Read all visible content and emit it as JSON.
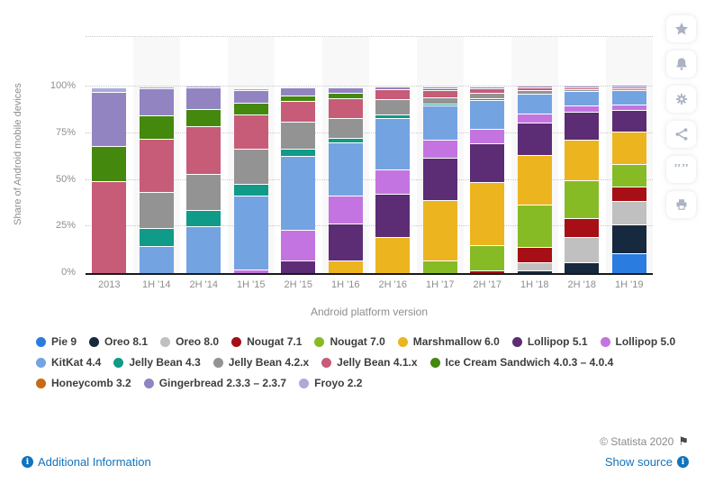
{
  "page": {
    "copyright": "© Statista 2020",
    "flag_glyph": "⚑",
    "info_glyph": "i",
    "additional_info_label": "Additional Information",
    "show_source_label": "Show source",
    "link_color": "#1273be"
  },
  "toolbar": {
    "icons": [
      "star-icon",
      "bell-icon",
      "gear-icon",
      "share-icon",
      "cite-quote-icon",
      "print-icon"
    ],
    "icon_color": "#a9b3c1",
    "cite_glyph": "””"
  },
  "chart_data": {
    "type": "bar",
    "stacked": true,
    "stack_total": 100,
    "title": "",
    "xlabel": "Android platform version",
    "ylabel": "Share of Android mobile devices",
    "ylim": [
      0,
      100
    ],
    "yticks": [
      "0%",
      "25%",
      "50%",
      "75%",
      "100%"
    ],
    "ytick_values": [
      0,
      25,
      50,
      75,
      100
    ],
    "grid": "dotted horizontal",
    "legend_position": "bottom",
    "categories": [
      "2013",
      "1H '14",
      "2H '14",
      "1H '15",
      "2H '15",
      "1H '16",
      "2H '16",
      "1H '17",
      "2H '17",
      "1H '18",
      "2H '18",
      "1H '19"
    ],
    "series_note": "stacking order bottom-to-top; values are percent per half-year column",
    "series": [
      {
        "name": "Pie 9",
        "color": "#2a7ce0",
        "values": [
          0,
          0,
          0,
          0,
          0,
          0,
          0,
          0,
          0,
          0,
          0,
          10.5
        ]
      },
      {
        "name": "Oreo 8.1",
        "color": "#17293e",
        "values": [
          0,
          0,
          0,
          0,
          0,
          0,
          0,
          0,
          0,
          1.5,
          6,
          15.5
        ]
      },
      {
        "name": "Oreo 8.0",
        "color": "#c0c0c0",
        "values": [
          0,
          0,
          0,
          0,
          0,
          0,
          0,
          0,
          0,
          4.5,
          13.5,
          12.5
        ]
      },
      {
        "name": "Nougat 7.1",
        "color": "#a50f15",
        "values": [
          0,
          0,
          0,
          0,
          0,
          0,
          0,
          0,
          1.5,
          8,
          10,
          7.5
        ]
      },
      {
        "name": "Nougat 7.0",
        "color": "#87bb26",
        "values": [
          0,
          0,
          0,
          0,
          0,
          0,
          0,
          7,
          13.5,
          22.5,
          20.5,
          12
        ]
      },
      {
        "name": "Marshmallow 6.0",
        "color": "#ecb41f",
        "values": [
          0,
          0,
          0,
          0,
          0,
          7,
          19.5,
          32.5,
          34,
          26.5,
          21.5,
          17.5
        ]
      },
      {
        "name": "Lollipop 5.1",
        "color": "#5c2c75",
        "values": [
          0,
          0,
          0,
          0,
          7,
          20,
          23,
          22.5,
          21,
          17.5,
          15,
          11.5
        ]
      },
      {
        "name": "Lollipop 5.0",
        "color": "#c374e0",
        "values": [
          0,
          0,
          0,
          2,
          16.5,
          15,
          13,
          9.5,
          7.5,
          5,
          3.5,
          3
        ]
      },
      {
        "name": "KitKat 4.4",
        "color": "#74a3e2",
        "values": [
          0,
          14.5,
          25,
          39.5,
          39.5,
          28.5,
          27.5,
          18.5,
          15.5,
          10.5,
          7.5,
          7.5
        ]
      },
      {
        "name": "Jelly Bean 4.3",
        "color": "#109a88",
        "values": [
          0,
          9.5,
          8.5,
          6.5,
          4,
          2.5,
          2,
          1,
          0.7,
          0,
          0,
          0
        ]
      },
      {
        "name": "Jelly Bean 4.2.x",
        "color": "#939393",
        "values": [
          0,
          19.5,
          19.5,
          19,
          14.5,
          10.5,
          8,
          3.5,
          3,
          2,
          1,
          1
        ]
      },
      {
        "name": "Jelly Bean 4.1.x",
        "color": "#c65c78",
        "values": [
          49.5,
          28.5,
          25.5,
          18.5,
          11,
          10.5,
          5.5,
          4,
          2.3,
          1.5,
          1,
          1
        ]
      },
      {
        "name": "Ice Cream Sandwich 4.0.3 – 4.0.4",
        "color": "#44880d",
        "values": [
          19,
          12.5,
          9,
          6.5,
          3,
          3,
          0,
          0.5,
          0,
          0,
          0,
          0
        ]
      },
      {
        "name": "Honeycomb 3.2",
        "color": "#c96a12",
        "values": [
          0,
          0,
          0,
          0,
          0,
          0,
          0,
          0,
          0,
          0,
          0,
          0
        ]
      },
      {
        "name": "Gingerbread 2.3.3 – 2.3.7",
        "color": "#9284c0",
        "values": [
          29,
          14.5,
          11.5,
          7,
          4.5,
          3,
          1.5,
          1,
          1,
          0.5,
          0.5,
          0.5
        ]
      },
      {
        "name": "Froyo 2.2",
        "color": "#aaabdc",
        "values": [
          2.5,
          1,
          1,
          1,
          0,
          0,
          0,
          0,
          0,
          0,
          0,
          0
        ]
      }
    ]
  }
}
